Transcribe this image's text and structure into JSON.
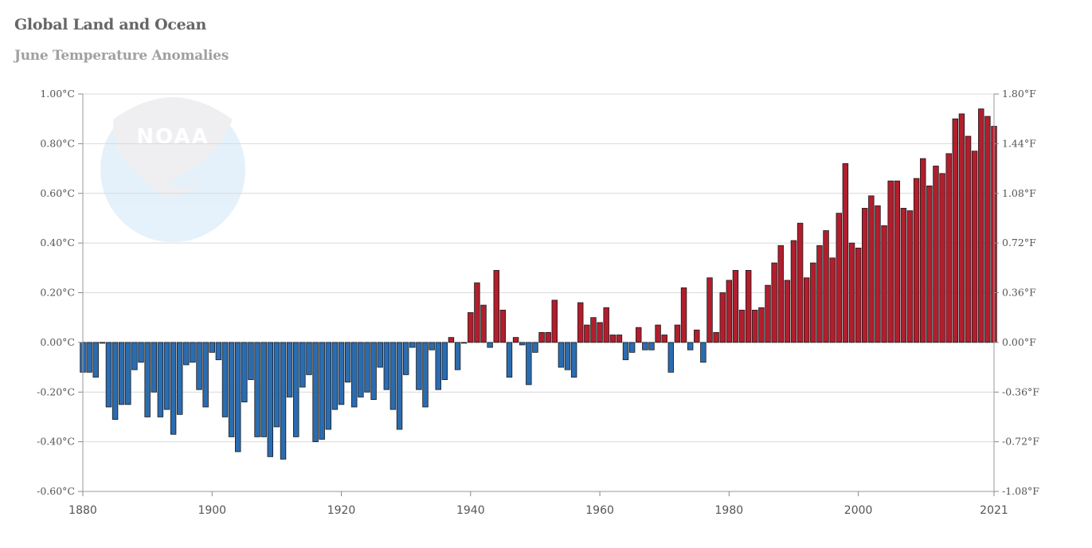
{
  "chart_data": {
    "type": "bar",
    "title": "Global Land and Ocean",
    "subtitle": "June Temperature Anomalies",
    "x_start": 1880,
    "x_end": 2021,
    "ylim": [
      -0.6,
      1.0
    ],
    "grid": true,
    "left_axis_ticks": [
      "-0.60°C",
      "-0.40°C",
      "-0.20°C",
      "0.00°C",
      "0.20°C",
      "0.40°C",
      "0.60°C",
      "0.80°C",
      "1.00°C"
    ],
    "right_axis_ticks": [
      "-1.08°F",
      "-0.72°F",
      "-0.36°F",
      "0.00°F",
      "0.36°F",
      "0.72°F",
      "1.08°F",
      "1.44°F",
      "1.80°F"
    ],
    "x_tick_labels": [
      "1880",
      "1900",
      "1920",
      "1940",
      "1960",
      "1980",
      "2000",
      "2021"
    ],
    "colors": {
      "positive": "#b11e2d",
      "negative": "#2b6cb0",
      "outline": "#1a1a1a",
      "grid": "#d9d9d9"
    },
    "values": [
      -0.12,
      -0.12,
      -0.14,
      0.0,
      -0.26,
      -0.31,
      -0.25,
      -0.25,
      -0.11,
      -0.08,
      -0.3,
      -0.2,
      -0.3,
      -0.27,
      -0.37,
      -0.29,
      -0.09,
      -0.08,
      -0.19,
      -0.26,
      -0.04,
      -0.07,
      -0.3,
      -0.38,
      -0.44,
      -0.24,
      -0.15,
      -0.38,
      -0.38,
      -0.46,
      -0.34,
      -0.47,
      -0.22,
      -0.38,
      -0.18,
      -0.13,
      -0.4,
      -0.39,
      -0.35,
      -0.27,
      -0.25,
      -0.16,
      -0.26,
      -0.22,
      -0.2,
      -0.23,
      -0.1,
      -0.19,
      -0.27,
      -0.35,
      -0.13,
      -0.02,
      -0.19,
      -0.26,
      -0.03,
      -0.19,
      -0.15,
      0.02,
      -0.11,
      0.0,
      0.12,
      0.24,
      0.15,
      -0.02,
      0.29,
      0.13,
      -0.14,
      0.02,
      -0.01,
      -0.17,
      -0.04,
      0.04,
      0.04,
      0.17,
      -0.1,
      -0.11,
      -0.14,
      0.16,
      0.07,
      0.1,
      0.08,
      0.14,
      0.03,
      0.03,
      -0.07,
      -0.04,
      0.06,
      -0.03,
      -0.03,
      0.07,
      0.03,
      -0.12,
      0.07,
      0.22,
      -0.03,
      0.05,
      -0.08,
      0.26,
      0.04,
      0.2,
      0.25,
      0.29,
      0.13,
      0.29,
      0.13,
      0.14,
      0.23,
      0.32,
      0.39,
      0.25,
      0.41,
      0.48,
      0.26,
      0.32,
      0.39,
      0.45,
      0.34,
      0.52,
      0.72,
      0.4,
      0.38,
      0.54,
      0.59,
      0.55,
      0.47,
      0.65,
      0.65,
      0.54,
      0.53,
      0.66,
      0.74,
      0.63,
      0.71,
      0.68,
      0.76,
      0.9,
      0.92,
      0.83,
      0.77,
      0.94,
      0.91,
      0.87
    ]
  }
}
